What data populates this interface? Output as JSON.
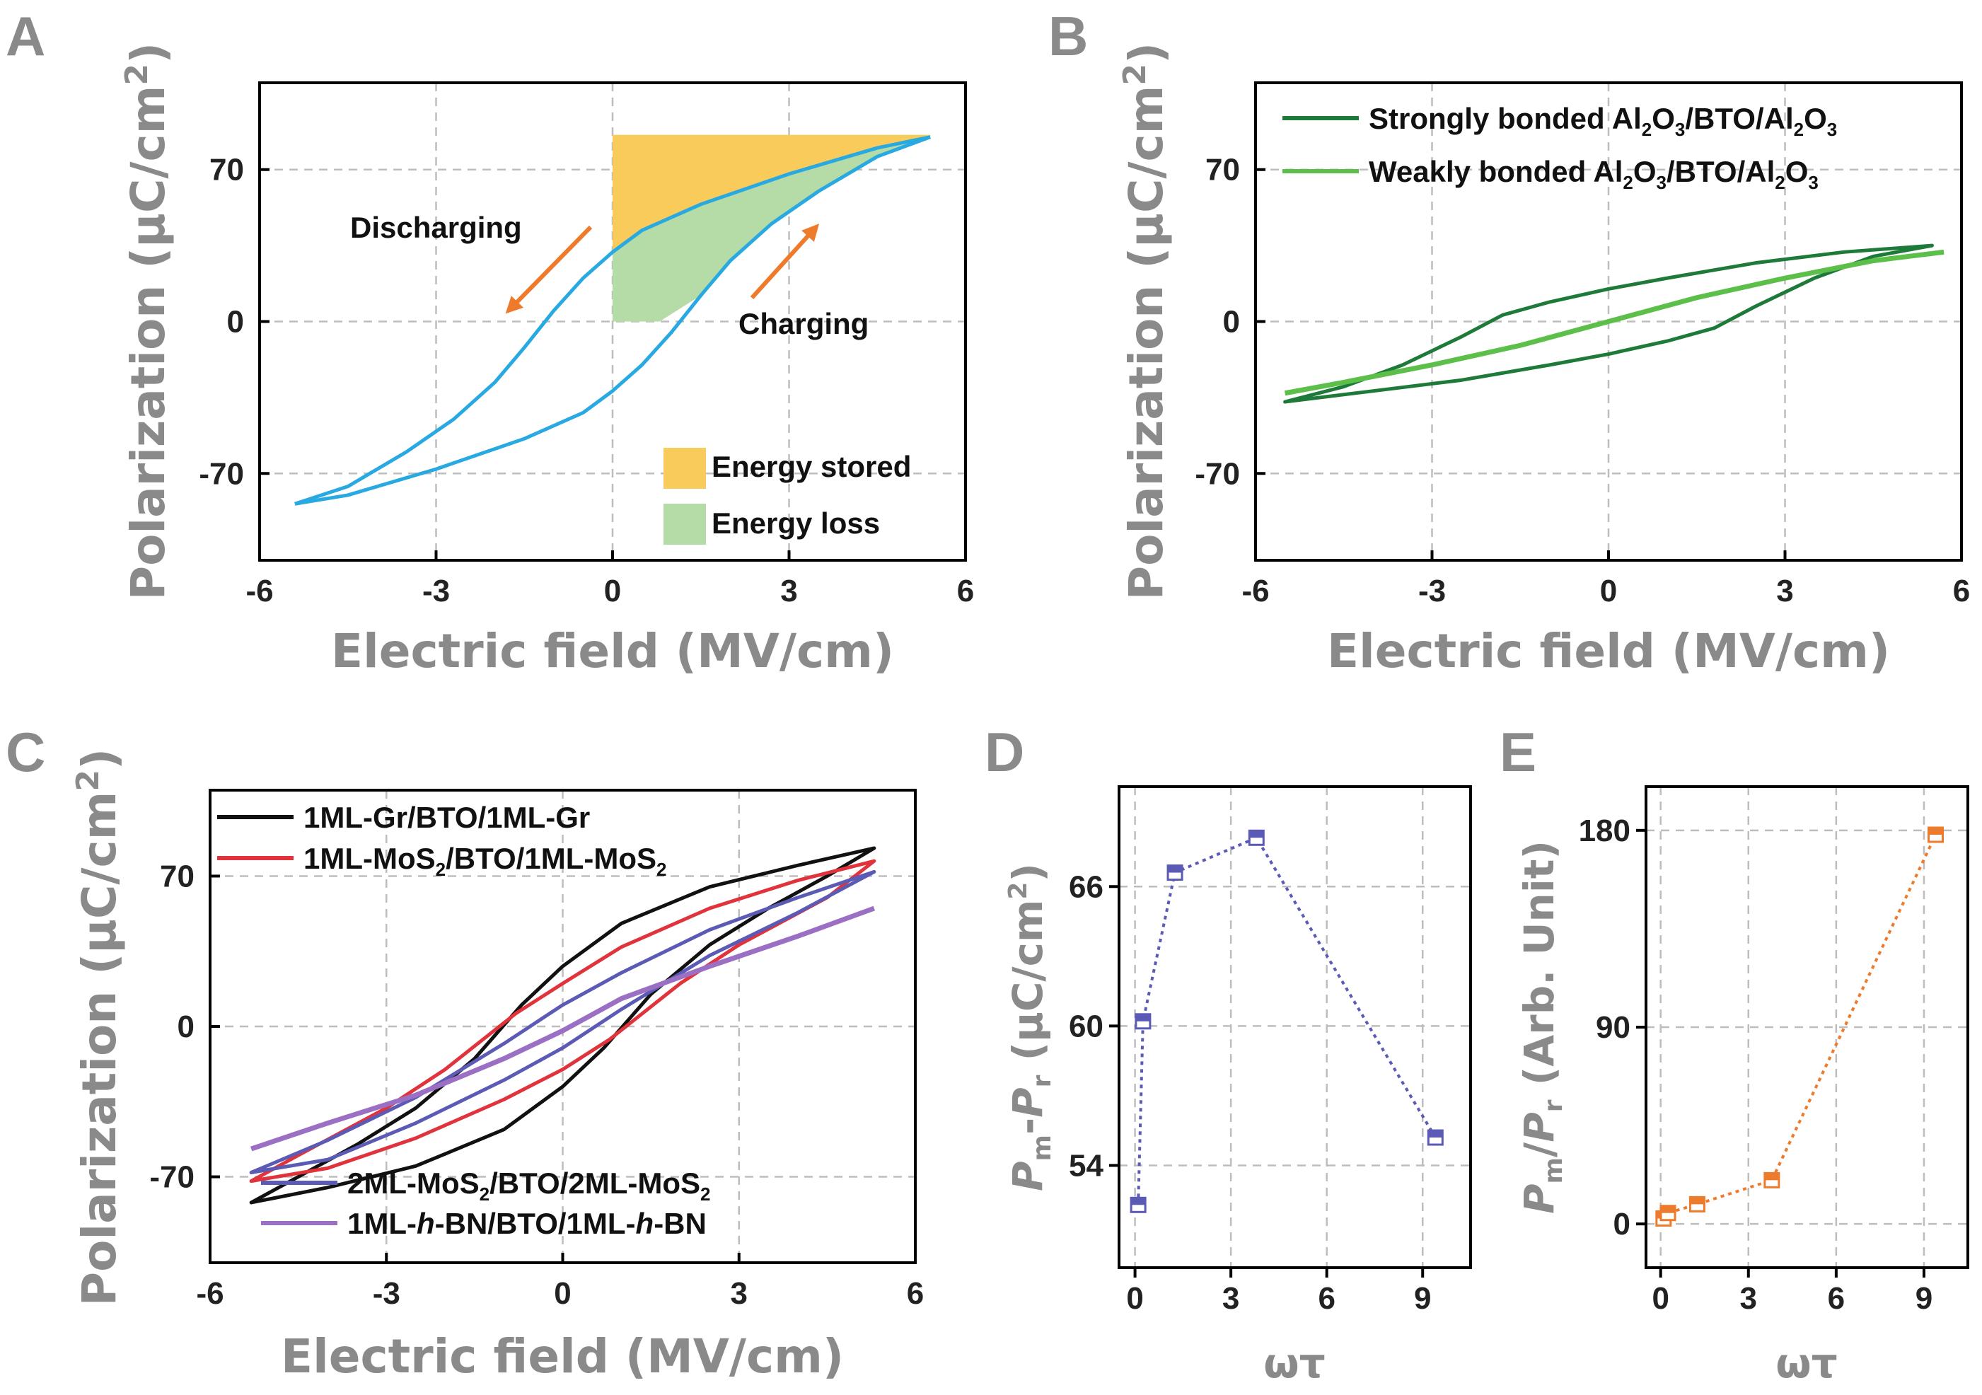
{
  "chart_data": [
    {
      "panel": "A",
      "type": "line",
      "xlabel": "Electric field (MV/cm)",
      "ylabel": "Polarization (μC/cm²)",
      "xlim": [
        -6,
        6
      ],
      "ylim": [
        -110,
        110
      ],
      "xticks": [
        "-6",
        "-3",
        "0",
        "3",
        "6"
      ],
      "yticks": [
        "-70",
        "0",
        "70"
      ],
      "annotations": {
        "discharging": "Discharging",
        "charging": "Charging"
      },
      "legend": [
        "Energy stored",
        "Energy loss"
      ],
      "colors": {
        "loop": "#29a9e1",
        "stored": "#f9cb5a",
        "loss": "#b5dba7",
        "arrow": "#ee7b2b"
      },
      "series": [
        {
          "name": "upper branch",
          "x": [
            5.4,
            4.5,
            3.0,
            1.5,
            0.5,
            0.0,
            -0.5,
            -1.0,
            -1.5,
            -2.0,
            -2.7,
            -3.5,
            -4.5,
            -5.4
          ],
          "y": [
            85,
            80,
            68,
            54,
            42,
            32,
            20,
            5,
            -12,
            -28,
            -45,
            -60,
            -76,
            -84
          ]
        },
        {
          "name": "lower branch",
          "x": [
            -5.4,
            -4.5,
            -3.0,
            -1.5,
            -0.5,
            0.0,
            0.5,
            1.0,
            1.5,
            2.0,
            2.7,
            3.5,
            4.5,
            5.4
          ],
          "y": [
            -84,
            -80,
            -68,
            -54,
            -42,
            -32,
            -20,
            -5,
            12,
            28,
            45,
            60,
            76,
            85
          ]
        }
      ],
      "energy_region": {
        "x0": 0,
        "x1": 5.4,
        "y_top": 86
      }
    },
    {
      "panel": "B",
      "type": "line",
      "xlabel": "Electric field (MV/cm)",
      "ylabel": "Polarization (μC/cm²)",
      "xlim": [
        -6,
        6
      ],
      "ylim": [
        -110,
        110
      ],
      "xticks": [
        "-6",
        "-3",
        "0",
        "3",
        "6"
      ],
      "yticks": [
        "-70",
        "0",
        "70"
      ],
      "series": [
        {
          "name": "Strongly bonded Al2O3/BTO/Al2O3",
          "label_parts": [
            "Strongly bonded Al",
            "2",
            "O",
            "3",
            "/BTO/Al",
            "2",
            "O",
            "3"
          ],
          "color": "#1e7a38",
          "closed": true,
          "x": [
            5.5,
            4.0,
            2.5,
            1.0,
            0.0,
            -1.0,
            -1.8,
            -2.5,
            -3.5,
            -4.5,
            -5.5,
            -4.0,
            -2.5,
            -1.0,
            0.0,
            1.0,
            1.8,
            2.5,
            3.5,
            4.5,
            5.5
          ],
          "y": [
            35,
            32,
            27,
            20,
            15,
            9,
            3,
            -7,
            -20,
            -30,
            -37,
            -32,
            -27,
            -20,
            -15,
            -9,
            -3,
            7,
            20,
            30,
            35
          ]
        },
        {
          "name": "Weakly bonded Al2O3/BTO/Al2O3",
          "label_parts": [
            "Weakly bonded Al",
            "2",
            "O",
            "3",
            "/BTO/Al",
            "2",
            "O",
            "3"
          ],
          "color": "#5cbf4a",
          "closed": false,
          "x": [
            -5.5,
            -4.5,
            -3.0,
            -1.5,
            0.0,
            1.5,
            3.0,
            4.5,
            5.7
          ],
          "y": [
            -33,
            -28,
            -20,
            -11,
            0,
            11,
            20,
            28,
            32
          ]
        }
      ]
    },
    {
      "panel": "C",
      "type": "line",
      "xlabel": "Electric field (MV/cm)",
      "ylabel": "Polarization (μC/cm²)",
      "xlim": [
        -6,
        6
      ],
      "ylim": [
        -110,
        110
      ],
      "xticks": [
        "-6",
        "-3",
        "0",
        "3",
        "6"
      ],
      "yticks": [
        "-70",
        "0",
        "70"
      ],
      "series": [
        {
          "name": "1ML-Gr/BTO/1ML-Gr",
          "label_parts": [
            "1ML-Gr/BTO/1ML-Gr"
          ],
          "color": "#111111",
          "closed": true,
          "x": [
            5.3,
            4.0,
            2.5,
            1.0,
            0.0,
            -0.7,
            -1.5,
            -2.5,
            -3.5,
            -4.5,
            -5.3,
            -4.0,
            -2.5,
            -1.0,
            0.0,
            0.7,
            1.5,
            2.5,
            3.5,
            4.5,
            5.3
          ],
          "y": [
            83,
            75,
            65,
            48,
            28,
            10,
            -15,
            -38,
            -55,
            -70,
            -82,
            -75,
            -65,
            -48,
            -28,
            -10,
            15,
            38,
            55,
            70,
            83
          ]
        },
        {
          "name": "1ML-MoS2/BTO/1ML-MoS2",
          "label_parts": [
            "1ML-MoS",
            "2",
            "/BTO/1ML-MoS",
            "2"
          ],
          "color": "#e0333c",
          "closed": true,
          "x": [
            5.3,
            4.0,
            2.5,
            1.0,
            0.0,
            -0.8,
            -2.0,
            -3.0,
            -4.5,
            -5.3,
            -4.0,
            -2.5,
            -1.0,
            0.0,
            0.8,
            2.0,
            3.0,
            4.5,
            5.3
          ],
          "y": [
            77,
            68,
            55,
            37,
            20,
            6,
            -20,
            -38,
            -60,
            -72,
            -66,
            -52,
            -34,
            -20,
            -6,
            20,
            38,
            60,
            77
          ]
        },
        {
          "name": "2ML-MoS2/BTO/2ML-MoS2",
          "label_parts": [
            "2ML-MoS",
            "2",
            "/BTO/2ML-MoS",
            "2"
          ],
          "color": "#5b5bb5",
          "closed": true,
          "x": [
            5.3,
            4.0,
            2.5,
            1.0,
            0.0,
            -1.0,
            -2.5,
            -4.0,
            -5.3,
            -4.0,
            -2.5,
            -1.0,
            0.0,
            1.0,
            2.5,
            4.0,
            5.3
          ],
          "y": [
            72,
            60,
            45,
            25,
            10,
            -8,
            -33,
            -53,
            -68,
            -62,
            -45,
            -25,
            -10,
            8,
            33,
            53,
            72
          ]
        },
        {
          "name": "1ML-h-BN/BTO/1ML-h-BN",
          "label_parts": [
            "1ML-",
            "h",
            "-BN/BTO/1ML-",
            "h",
            "-BN"
          ],
          "color": "#9b6fc4",
          "closed": false,
          "x": [
            -5.3,
            -4.0,
            -2.5,
            -1.0,
            0.0,
            1.0,
            2.5,
            4.0,
            5.3
          ],
          "y": [
            -57,
            -45,
            -32,
            -15,
            -2,
            13,
            28,
            42,
            55
          ]
        }
      ]
    },
    {
      "panel": "D",
      "type": "scatter",
      "xlabel": "ωτ",
      "ylabel": "Pm-Pr (μC/cm²)",
      "xlim": [
        -0.5,
        10.5
      ],
      "ylim": [
        49.6,
        70.3
      ],
      "xticks": [
        "0",
        "3",
        "6",
        "9"
      ],
      "yticks": [
        "54",
        "60",
        "66"
      ],
      "color": "#5b5bb5",
      "x": [
        0.1,
        0.25,
        1.25,
        3.8,
        9.4
      ],
      "y": [
        52.3,
        60.2,
        66.6,
        68.1,
        55.2
      ]
    },
    {
      "panel": "E",
      "type": "scatter",
      "xlabel": "ωτ",
      "ylabel": "Pm/Pr (Arb. Unit)",
      "xlim": [
        -0.5,
        10.5
      ],
      "ylim": [
        -20,
        200
      ],
      "xticks": [
        "0",
        "3",
        "6",
        "9"
      ],
      "yticks": [
        "0",
        "90",
        "180"
      ],
      "color": "#ee7b2b",
      "x": [
        0.1,
        0.25,
        1.25,
        3.8,
        9.4
      ],
      "y": [
        2.5,
        5.0,
        9.0,
        20.0,
        178.0
      ]
    }
  ]
}
